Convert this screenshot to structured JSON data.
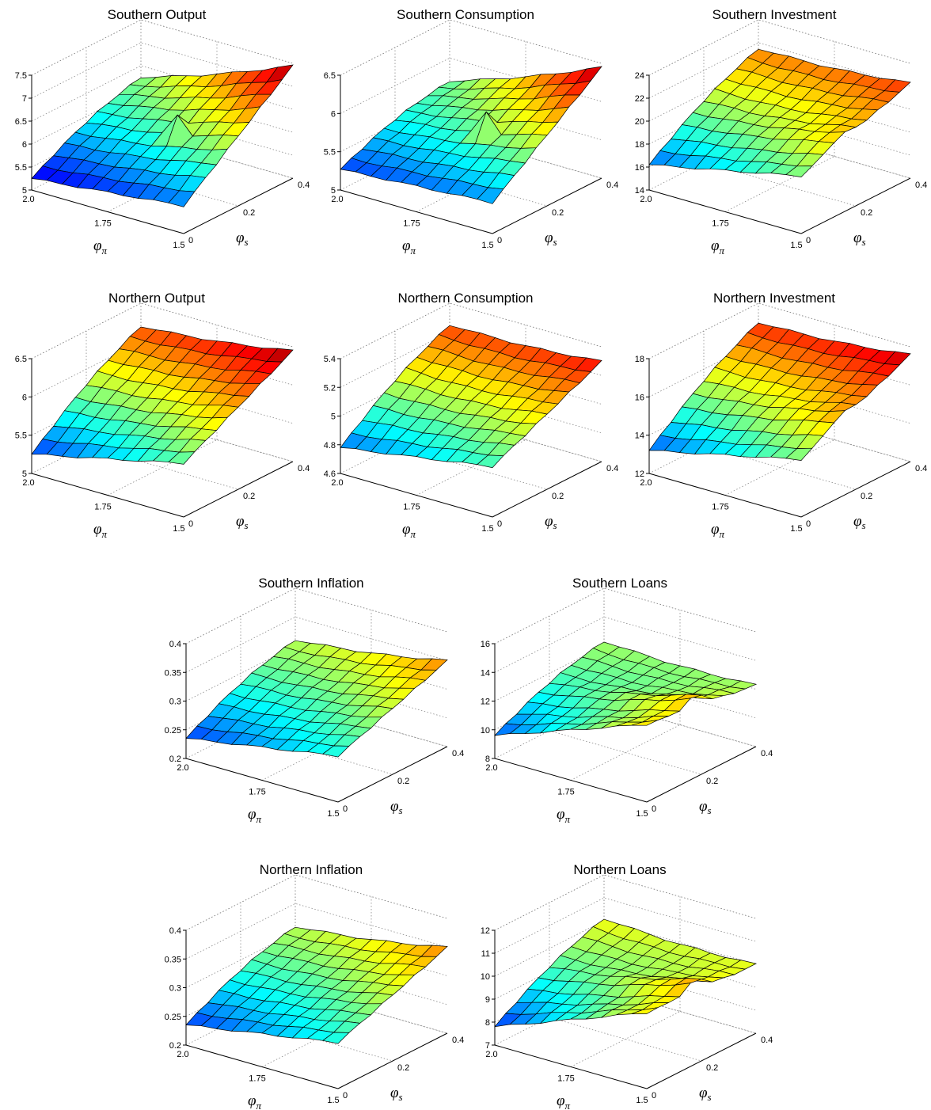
{
  "chart_data": [
    {
      "id": "southern-output",
      "type": "surface3d",
      "title": "Southern Output",
      "zticks": [
        "5",
        "5.5",
        "6",
        "6.5",
        "7",
        "7.5"
      ],
      "zlim": [
        5,
        7.5
      ],
      "xticks": [
        "2.0",
        "1.75",
        "1.5"
      ],
      "yticks": [
        "0",
        "0.2",
        "0.4"
      ],
      "xlabel": "φ",
      "xsub": "π",
      "ylabel": "φ",
      "ysub": "s",
      "x_range": [
        1.5,
        2.0
      ],
      "y_range": [
        0,
        0.4
      ],
      "grid": "on",
      "colormap": "jet",
      "surface": {
        "corner_phi_pi_2_0_phi_s_0": 5.25,
        "corner_phi_pi_1_5_phi_s_0": 5.6,
        "corner_phi_pi_2_0_phi_s_0_4": 6.25,
        "corner_phi_pi_1_5_phi_s_0_4": 7.45,
        "spike_peak": 6.6
      }
    },
    {
      "id": "southern-consumption",
      "type": "surface3d",
      "title": "Southern Consumption",
      "zticks": [
        "5",
        "5.5",
        "6",
        "6.5"
      ],
      "zlim": [
        5,
        6.5
      ],
      "xticks": [
        "2.0",
        "1.75",
        "1.5"
      ],
      "yticks": [
        "0",
        "0.2",
        "0.4"
      ],
      "xlabel": "φ",
      "xsub": "π",
      "ylabel": "φ",
      "ysub": "s",
      "x_range": [
        1.5,
        2.0
      ],
      "y_range": [
        0,
        0.4
      ],
      "grid": "on",
      "colormap": "jet",
      "surface": {
        "corner_phi_pi_2_0_phi_s_0": 5.27,
        "corner_phi_pi_1_5_phi_s_0": 5.4,
        "corner_phi_pi_2_0_phi_s_0_4": 5.7,
        "corner_phi_pi_1_5_phi_s_0_4": 6.45,
        "spike_peak": 6.0
      }
    },
    {
      "id": "southern-investment",
      "type": "surface3d",
      "title": "Southern Investment",
      "zticks": [
        "14",
        "16",
        "18",
        "20",
        "22",
        "24"
      ],
      "zlim": [
        14,
        24
      ],
      "xticks": [
        "2.0",
        "1.75",
        "1.5"
      ],
      "yticks": [
        "0",
        "0.2",
        "0.4"
      ],
      "xlabel": "φ",
      "xsub": "π",
      "ylabel": "φ",
      "ysub": "s",
      "x_range": [
        1.5,
        2.0
      ],
      "y_range": [
        0,
        0.4
      ],
      "grid": "on",
      "colormap": "jet",
      "surface": {
        "corner_phi_pi_2_0_phi_s_0": 16.2,
        "corner_phi_pi_1_5_phi_s_0": 19.0,
        "corner_phi_pi_2_0_phi_s_0_4": 21.5,
        "corner_phi_pi_1_5_phi_s_0_4": 22.3
      }
    },
    {
      "id": "northern-output",
      "type": "surface3d",
      "title": "Northern Output",
      "zticks": [
        "5",
        "5.5",
        "6",
        "6.5"
      ],
      "zlim": [
        5,
        6.5
      ],
      "xticks": [
        "2.0",
        "1.75",
        "1.5"
      ],
      "yticks": [
        "0",
        "0.2",
        "0.4"
      ],
      "xlabel": "φ",
      "xsub": "π",
      "ylabel": "φ",
      "ysub": "s",
      "x_range": [
        1.5,
        2.0
      ],
      "y_range": [
        0,
        0.4
      ],
      "grid": "on",
      "colormap": "jet",
      "surface": {
        "corner_phi_pi_2_0_phi_s_0": 5.25,
        "corner_phi_pi_1_5_phi_s_0": 5.7,
        "corner_phi_pi_2_0_phi_s_0_4": 6.2,
        "corner_phi_pi_1_5_phi_s_0_4": 6.45
      }
    },
    {
      "id": "northern-consumption",
      "type": "surface3d",
      "title": "Northern Consumption",
      "zticks": [
        "4.6",
        "4.8",
        "5",
        "5.2",
        "5.4"
      ],
      "zlim": [
        4.6,
        5.4
      ],
      "xticks": [
        "2.0",
        "1.75",
        "1.5"
      ],
      "yticks": [
        "0",
        "0.2",
        "0.4"
      ],
      "xlabel": "φ",
      "xsub": "π",
      "ylabel": "φ",
      "ysub": "s",
      "x_range": [
        1.5,
        2.0
      ],
      "y_range": [
        0,
        0.4
      ],
      "grid": "on",
      "colormap": "jet",
      "surface": {
        "corner_phi_pi_2_0_phi_s_0": 4.78,
        "corner_phi_pi_1_5_phi_s_0": 4.95,
        "corner_phi_pi_2_0_phi_s_0_4": 5.25,
        "corner_phi_pi_1_5_phi_s_0_4": 5.3
      }
    },
    {
      "id": "northern-investment",
      "type": "surface3d",
      "title": "Northern Investment",
      "zticks": [
        "12",
        "14",
        "16",
        "18"
      ],
      "zlim": [
        12,
        18
      ],
      "xticks": [
        "2.0",
        "1.75",
        "1.5"
      ],
      "yticks": [
        "0",
        "0.2",
        "0.4"
      ],
      "xlabel": "φ",
      "xsub": "π",
      "ylabel": "φ",
      "ysub": "s",
      "x_range": [
        1.5,
        2.0
      ],
      "y_range": [
        0,
        0.4
      ],
      "grid": "on",
      "colormap": "jet",
      "surface": {
        "corner_phi_pi_2_0_phi_s_0": 13.2,
        "corner_phi_pi_1_5_phi_s_0": 15.0,
        "corner_phi_pi_2_0_phi_s_0_4": 17.0,
        "corner_phi_pi_1_5_phi_s_0_4": 17.6
      }
    },
    {
      "id": "southern-inflation",
      "type": "surface3d",
      "title": "Southern Inflation",
      "zticks": [
        "0.2",
        "0.25",
        "0.3",
        "0.35",
        "0.4"
      ],
      "zlim": [
        0.2,
        0.4
      ],
      "xticks": [
        "2.0",
        "1.75",
        "1.5"
      ],
      "yticks": [
        "0",
        "0.2",
        "0.4"
      ],
      "xlabel": "φ",
      "xsub": "π",
      "ylabel": "φ",
      "ysub": "s",
      "x_range": [
        1.5,
        2.0
      ],
      "y_range": [
        0,
        0.4
      ],
      "grid": "on",
      "colormap": "jet",
      "surface": {
        "corner_phi_pi_2_0_phi_s_0": 0.235,
        "corner_phi_pi_1_5_phi_s_0": 0.28,
        "corner_phi_pi_2_0_phi_s_0_4": 0.31,
        "corner_phi_pi_1_5_phi_s_0_4": 0.35
      }
    },
    {
      "id": "southern-loans",
      "type": "surface3d",
      "title": "Southern Loans",
      "zticks": [
        "8",
        "10",
        "12",
        "14",
        "16"
      ],
      "zlim": [
        8,
        16
      ],
      "xticks": [
        "2.0",
        "1.75",
        "1.5"
      ],
      "yticks": [
        "0",
        "0.2",
        "0.4"
      ],
      "xlabel": "φ",
      "xsub": "π",
      "ylabel": "φ",
      "ysub": "s",
      "x_range": [
        1.5,
        2.0
      ],
      "y_range": [
        0,
        0.4
      ],
      "grid": "on",
      "colormap": "jet",
      "surface": {
        "corner_phi_pi_2_0_phi_s_0": 9.6,
        "corner_phi_pi_1_5_phi_s_0": 13.4,
        "corner_phi_pi_2_0_phi_s_0_4": 12.3,
        "corner_phi_pi_1_5_phi_s_0_4": 12.3
      }
    },
    {
      "id": "northern-inflation",
      "type": "surface3d",
      "title": "Northern Inflation",
      "zticks": [
        "0.2",
        "0.25",
        "0.3",
        "0.35",
        "0.4"
      ],
      "zlim": [
        0.2,
        0.4
      ],
      "xticks": [
        "2.0",
        "1.75",
        "1.5"
      ],
      "yticks": [
        "0",
        "0.2",
        "0.4"
      ],
      "xlabel": "φ",
      "xsub": "π",
      "ylabel": "φ",
      "ysub": "s",
      "x_range": [
        1.5,
        2.0
      ],
      "y_range": [
        0,
        0.4
      ],
      "grid": "on",
      "colormap": "jet",
      "surface": {
        "corner_phi_pi_2_0_phi_s_0": 0.235,
        "corner_phi_pi_1_5_phi_s_0": 0.28,
        "corner_phi_pi_2_0_phi_s_0_4": 0.31,
        "corner_phi_pi_1_5_phi_s_0_4": 0.35
      }
    },
    {
      "id": "northern-loans",
      "type": "surface3d",
      "title": "Northern Loans",
      "zticks": [
        "7",
        "8",
        "9",
        "10",
        "11",
        "12"
      ],
      "zlim": [
        7,
        12
      ],
      "xticks": [
        "2.0",
        "1.75",
        "1.5"
      ],
      "yticks": [
        "0",
        "0.2",
        "0.4"
      ],
      "xlabel": "φ",
      "xsub": "π",
      "ylabel": "φ",
      "ysub": "s",
      "x_range": [
        1.5,
        2.0
      ],
      "y_range": [
        0,
        0.4
      ],
      "grid": "on",
      "colormap": "jet",
      "surface": {
        "corner_phi_pi_2_0_phi_s_0": 7.8,
        "corner_phi_pi_1_5_phi_s_0": 10.3,
        "corner_phi_pi_2_0_phi_s_0_4": 10.1,
        "corner_phi_pi_1_5_phi_s_0_4": 10.0
      }
    }
  ]
}
